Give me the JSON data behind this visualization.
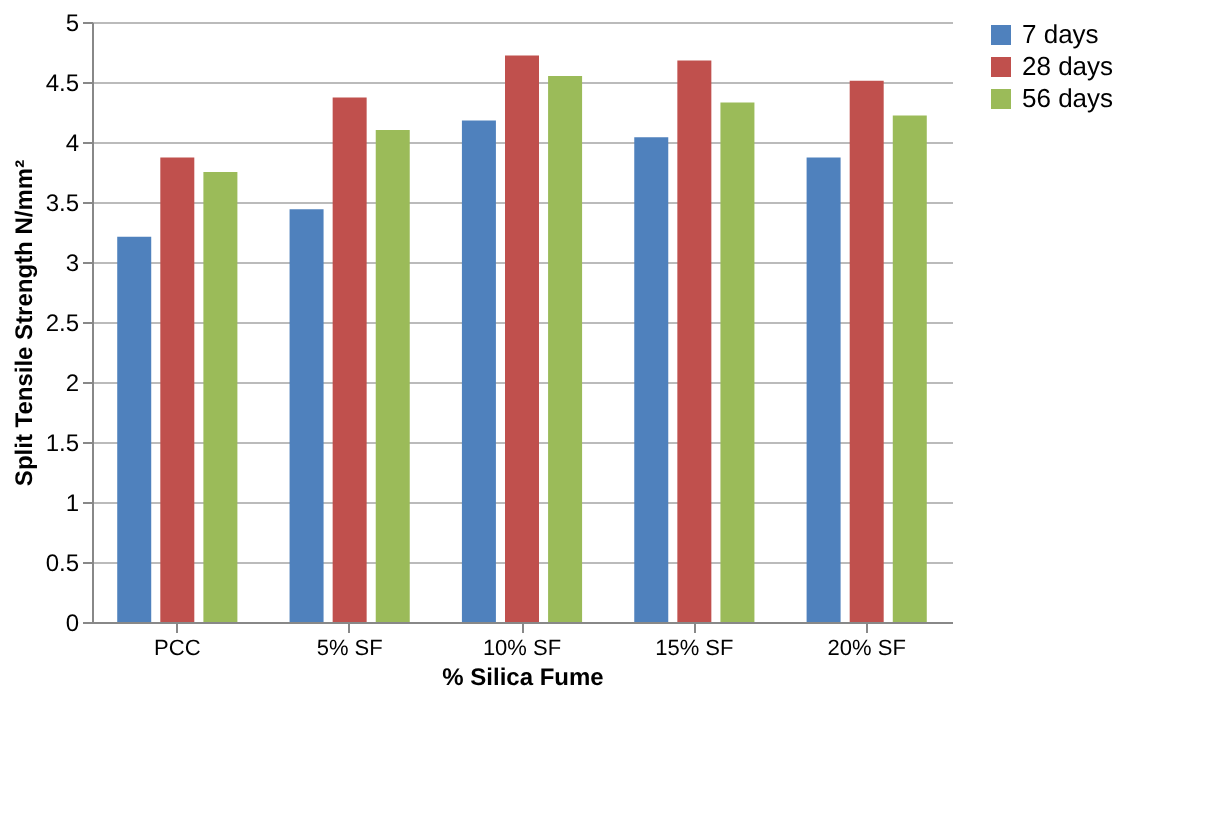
{
  "chart_data": {
    "type": "bar",
    "xlabel": "% Silica Fume",
    "ylabel": "Split Tensile Strength N/mm²",
    "categories": [
      "PCC",
      "5% SF",
      "10% SF",
      "15% SF",
      "20% SF"
    ],
    "series": [
      {
        "name": "7 days",
        "color": "#4f81bd",
        "values": [
          3.21,
          3.44,
          4.18,
          4.04,
          3.87
        ]
      },
      {
        "name": "28 days",
        "color": "#c0504d",
        "values": [
          3.87,
          4.37,
          4.72,
          4.68,
          4.51
        ]
      },
      {
        "name": "56 days",
        "color": "#9bbb59",
        "values": [
          3.75,
          4.1,
          4.55,
          4.33,
          4.22
        ]
      }
    ],
    "ylim": [
      0,
      5
    ],
    "yticks": [
      0,
      0.5,
      1,
      1.5,
      2,
      2.5,
      3,
      3.5,
      4,
      4.5,
      5
    ],
    "grid": "y",
    "legend": "right"
  }
}
